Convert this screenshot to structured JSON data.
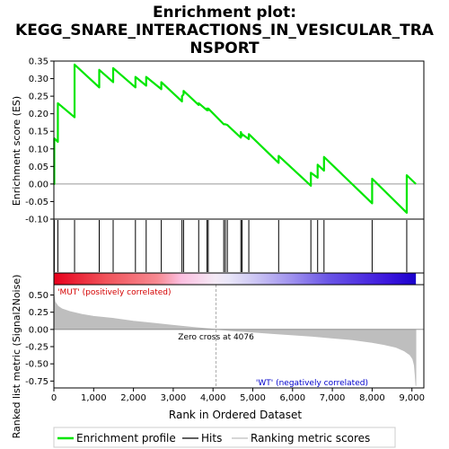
{
  "chart_data": {
    "type": "line",
    "title_lines": [
      "Enrichment plot:",
      "KEGG_SNARE_INTERACTIONS_IN_VESICULAR_TRA",
      "NSPORT"
    ],
    "top_panel": {
      "ylabel": "Enrichment score (ES)",
      "ylim": [
        -0.1,
        0.35
      ],
      "yticks": [
        -0.1,
        -0.05,
        0.0,
        0.05,
        0.1,
        0.15,
        0.2,
        0.25,
        0.3,
        0.35
      ],
      "ytick_labels": [
        "-0.10",
        "-0.05",
        "0.00",
        "0.05",
        "0.10",
        "0.15",
        "0.20",
        "0.25",
        "0.30",
        "0.35"
      ]
    },
    "bottom_panel": {
      "ylabel": "Ranked list metric (Signal2Noise)",
      "ylim": [
        -0.85,
        0.65
      ],
      "yticks": [
        -0.75,
        -0.5,
        -0.25,
        0.0,
        0.25,
        0.5
      ],
      "ytick_labels": [
        "-0.75",
        "-0.50",
        "-0.25",
        "0.00",
        "0.25",
        "0.50"
      ],
      "xlabel": "Rank in Ordered Dataset",
      "pos_label": "'MUT' (positively correlated)",
      "neg_label": "'WT' (negatively correlated)",
      "zero_cross_label": "Zero cross at 4076",
      "zero_cross": 4076
    },
    "xlim": [
      0,
      9300
    ],
    "xticks": [
      0,
      1000,
      2000,
      3000,
      4000,
      5000,
      6000,
      7000,
      8000,
      9000
    ],
    "xtick_labels": [
      "0",
      "1,000",
      "2,000",
      "3,000",
      "4,000",
      "5,000",
      "6,000",
      "7,000",
      "8,000",
      "9,000"
    ],
    "n_genes": 9100,
    "hits": [
      10,
      100,
      520,
      1140,
      1490,
      2050,
      2320,
      2700,
      3220,
      3260,
      3640,
      3850,
      3880,
      4270,
      4310,
      4360,
      4700,
      4730,
      4900,
      5650,
      6460,
      6630,
      6790,
      8000,
      8870
    ],
    "es_profile": {
      "x": [
        0,
        10,
        10,
        100,
        100,
        520,
        520,
        1140,
        1140,
        1490,
        1490,
        2050,
        2050,
        2320,
        2320,
        2700,
        2700,
        3220,
        3220,
        3260,
        3260,
        3640,
        3640,
        3850,
        3850,
        3880,
        3880,
        4270,
        4270,
        4310,
        4310,
        4360,
        4360,
        4700,
        4700,
        4730,
        4730,
        4900,
        4900,
        5650,
        5650,
        6460,
        6460,
        6630,
        6630,
        6790,
        6790,
        8000,
        8000,
        8870,
        8870,
        9100
      ],
      "y": [
        0.0,
        0.0,
        0.13,
        0.12,
        0.23,
        0.19,
        0.34,
        0.275,
        0.325,
        0.29,
        0.33,
        0.275,
        0.305,
        0.28,
        0.305,
        0.27,
        0.29,
        0.235,
        0.25,
        0.255,
        0.265,
        0.225,
        0.23,
        0.21,
        0.215,
        0.21,
        0.215,
        0.17,
        0.17,
        0.17,
        0.17,
        0.168,
        0.168,
        0.132,
        0.148,
        0.137,
        0.142,
        0.128,
        0.142,
        0.06,
        0.08,
        -0.005,
        0.032,
        0.018,
        0.055,
        0.038,
        0.077,
        -0.055,
        0.015,
        -0.082,
        0.025,
        0.0
      ]
    },
    "metric_curve": {
      "x": [
        0,
        30,
        100,
        200,
        400,
        700,
        1000,
        1500,
        2000,
        2500,
        3000,
        3500,
        4076,
        4500,
        5000,
        5500,
        6000,
        6500,
        7000,
        7500,
        8000,
        8300,
        8600,
        8800,
        8950,
        9020,
        9060,
        9080,
        9100
      ],
      "y": [
        0.52,
        0.4,
        0.34,
        0.3,
        0.26,
        0.22,
        0.19,
        0.16,
        0.12,
        0.09,
        0.06,
        0.03,
        0.0,
        -0.02,
        -0.04,
        -0.06,
        -0.08,
        -0.1,
        -0.125,
        -0.15,
        -0.19,
        -0.22,
        -0.26,
        -0.31,
        -0.37,
        -0.43,
        -0.52,
        -0.65,
        -0.82
      ]
    },
    "colorbar_stops": [
      {
        "x": 0,
        "color": "#e8001c"
      },
      {
        "x": 1300,
        "color": "#f0525a"
      },
      {
        "x": 2600,
        "color": "#f78a92"
      },
      {
        "x": 3200,
        "color": "#fbbfe0"
      },
      {
        "x": 4050,
        "color": "#f4eaf6"
      },
      {
        "x": 4400,
        "color": "#e9e6f8"
      },
      {
        "x": 5000,
        "color": "#cfc9f4"
      },
      {
        "x": 6000,
        "color": "#9e90ee"
      },
      {
        "x": 6900,
        "color": "#6a55e6"
      },
      {
        "x": 8400,
        "color": "#3b16dd"
      },
      {
        "x": 9100,
        "color": "#1a00cc"
      }
    ],
    "colors": {
      "profile": "#00e600",
      "hits": "#000000",
      "metric_fill": "#bebebe",
      "zero_cross": "#aaaaaa",
      "pos_label": "#d40000",
      "neg_label": "#0000cc"
    },
    "legend": [
      {
        "name": "Enrichment profile",
        "kind": "line",
        "color": "#00e600"
      },
      {
        "name": "Hits",
        "kind": "line",
        "color": "#000000"
      },
      {
        "name": "Ranking metric scores",
        "kind": "line",
        "color": "#bebebe"
      }
    ],
    "legend_placement": "bottom"
  }
}
